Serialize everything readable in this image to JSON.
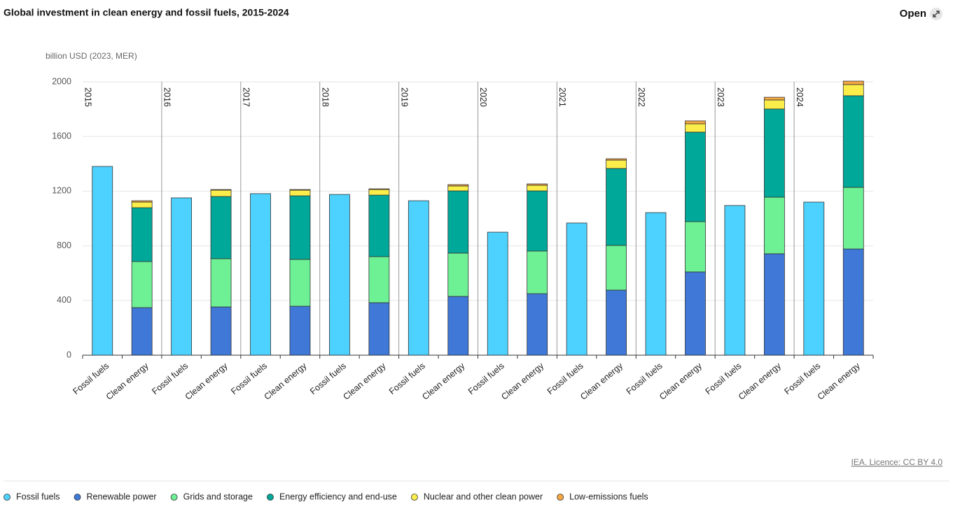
{
  "ui": {
    "open": "Open"
  },
  "chart_data": {
    "type": "bar",
    "stacked": true,
    "title": "Global investment in clean energy and fossil fuels, 2015-2024",
    "y_axis_label": "billion USD (2023, MER)",
    "source": "IEA. Licence: CC BY 4.0",
    "groups": [
      "2015",
      "2016",
      "2017",
      "2018",
      "2019",
      "2020",
      "2021",
      "2022",
      "2023",
      "2024"
    ],
    "categories": [
      "Fossil fuels",
      "Clean energy",
      "Fossil fuels",
      "Clean energy",
      "Fossil fuels",
      "Clean energy",
      "Fossil fuels",
      "Clean energy",
      "Fossil fuels",
      "Clean energy",
      "Fossil fuels",
      "Clean energy",
      "Fossil fuels",
      "Clean energy",
      "Fossil fuels",
      "Clean energy",
      "Fossil fuels",
      "Clean energy",
      "Fossil fuels",
      "Clean energy"
    ],
    "series": [
      {
        "name": "Fossil fuels",
        "color": "#4dd2ff",
        "values": [
          1381,
          null,
          1151,
          null,
          1182,
          null,
          1176,
          null,
          1130,
          null,
          900,
          null,
          967,
          null,
          1043,
          null,
          1095,
          null,
          1120,
          null
        ]
      },
      {
        "name": "Renewable power",
        "color": "#3f78d6",
        "values": [
          null,
          348,
          null,
          353,
          null,
          358,
          null,
          384,
          null,
          430,
          null,
          450,
          null,
          476,
          null,
          609,
          null,
          742,
          null,
          777
        ]
      },
      {
        "name": "Grids and storage",
        "color": "#6ef094",
        "values": [
          null,
          337,
          null,
          353,
          null,
          343,
          null,
          337,
          null,
          317,
          null,
          312,
          null,
          327,
          null,
          368,
          null,
          414,
          null,
          451
        ]
      },
      {
        "name": "Energy efficiency and end-use",
        "color": "#00a89a",
        "values": [
          null,
          394,
          null,
          455,
          null,
          465,
          null,
          450,
          null,
          455,
          null,
          440,
          null,
          563,
          null,
          655,
          null,
          645,
          null,
          670
        ]
      },
      {
        "name": "Nuclear and other clean power",
        "color": "#fcee4a",
        "values": [
          null,
          41,
          null,
          46,
          null,
          41,
          null,
          41,
          null,
          36,
          null,
          41,
          null,
          61,
          null,
          61,
          null,
          66,
          null,
          82
        ]
      },
      {
        "name": "Low-emissions fuels",
        "color": "#f5a742",
        "values": [
          null,
          10,
          null,
          5,
          null,
          5,
          null,
          5,
          null,
          10,
          null,
          10,
          null,
          10,
          null,
          21,
          null,
          20,
          null,
          25
        ]
      }
    ],
    "ylim": [
      0,
      2000
    ],
    "yticks": [
      0,
      400,
      800,
      1200,
      1600,
      2000
    ],
    "grid": true
  }
}
